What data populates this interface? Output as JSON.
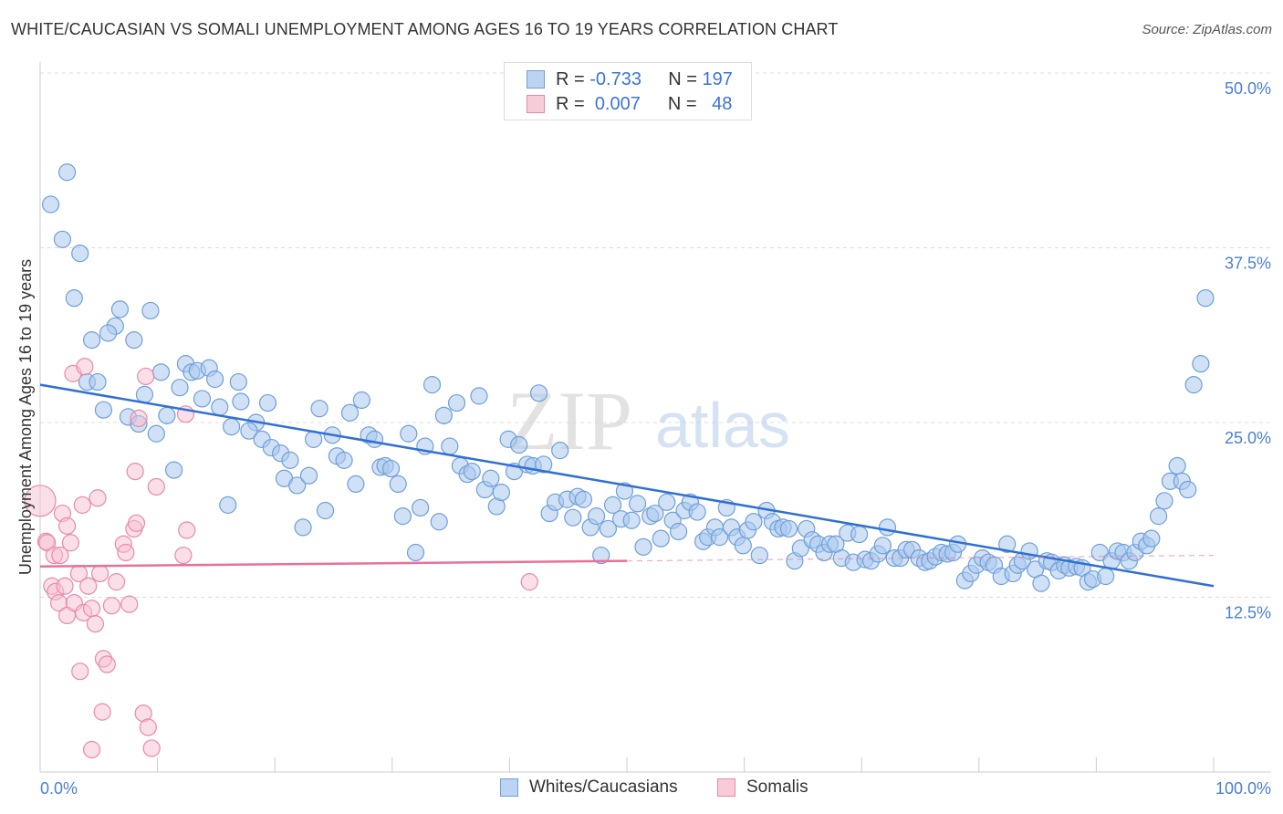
{
  "title": "WHITE/CAUCASIAN VS SOMALI UNEMPLOYMENT AMONG AGES 16 TO 19 YEARS CORRELATION CHART",
  "source": "Source: ZipAtlas.com",
  "legend": {
    "rows": [
      {
        "r_label": "R =",
        "r": "-0.733",
        "n_label": "N =",
        "n": "197"
      },
      {
        "r_label": "R =",
        "r": "0.007",
        "n_label": "N =",
        "n": "48"
      }
    ]
  },
  "watermark": {
    "zip": "ZIP",
    "atlas": "atlas"
  },
  "chart_data": {
    "type": "scatter",
    "title": "WHITE/CAUCASIAN VS SOMALI UNEMPLOYMENT AMONG AGES 16 TO 19 YEARS CORRELATION CHART",
    "xlabel": "",
    "ylabel": "Unemployment Among Ages 16 to 19 years",
    "xlim": [
      0,
      100
    ],
    "ylim": [
      0,
      50
    ],
    "x_tick_labels": [
      "0.0%",
      "100.0%"
    ],
    "y_ticks": [
      12.5,
      25.0,
      37.5,
      50.0
    ],
    "y_tick_labels": [
      "12.5%",
      "25.0%",
      "37.5%",
      "50.0%"
    ],
    "grid": true,
    "legend_position": "top-center",
    "colors": {
      "blue_fill": "#a9c8ee",
      "blue_stroke": "#6f9fd8",
      "blue_line": "#2f6fd6",
      "pink_fill": "#f6c0d2",
      "pink_stroke": "#e88aa8",
      "pink_line": "#e8719a"
    },
    "series": [
      {
        "name": "Whites/Caucasians",
        "trend": [
          [
            0,
            27.7
          ],
          [
            100,
            13.3
          ]
        ],
        "points": [
          [
            2.3,
            42.9
          ],
          [
            0.9,
            40.6
          ],
          [
            1.9,
            38.1
          ],
          [
            3.4,
            37.1
          ],
          [
            2.9,
            33.9
          ],
          [
            6.8,
            33.1
          ],
          [
            9.4,
            33.0
          ],
          [
            6.4,
            31.9
          ],
          [
            5.8,
            31.4
          ],
          [
            4.4,
            30.9
          ],
          [
            8.0,
            30.9
          ],
          [
            4.0,
            27.9
          ],
          [
            4.9,
            27.9
          ],
          [
            5.4,
            25.9
          ],
          [
            7.5,
            25.4
          ],
          [
            8.4,
            24.9
          ],
          [
            8.9,
            27.0
          ],
          [
            10.3,
            28.6
          ],
          [
            9.9,
            24.2
          ],
          [
            10.8,
            25.5
          ],
          [
            11.4,
            21.6
          ],
          [
            12.4,
            29.2
          ],
          [
            12.9,
            28.6
          ],
          [
            13.4,
            28.7
          ],
          [
            14.4,
            28.9
          ],
          [
            14.9,
            28.1
          ],
          [
            11.9,
            27.5
          ],
          [
            13.8,
            26.7
          ],
          [
            15.3,
            26.1
          ],
          [
            16.9,
            27.9
          ],
          [
            17.1,
            26.5
          ],
          [
            19.4,
            26.4
          ],
          [
            16.3,
            24.7
          ],
          [
            18.4,
            25.0
          ],
          [
            17.8,
            24.4
          ],
          [
            18.9,
            23.8
          ],
          [
            19.7,
            23.2
          ],
          [
            20.5,
            22.8
          ],
          [
            21.3,
            22.3
          ],
          [
            20.8,
            21.0
          ],
          [
            21.9,
            20.5
          ],
          [
            22.9,
            21.2
          ],
          [
            16.0,
            19.1
          ],
          [
            22.4,
            17.5
          ],
          [
            23.8,
            26.0
          ],
          [
            23.3,
            23.8
          ],
          [
            24.9,
            24.1
          ],
          [
            25.3,
            22.6
          ],
          [
            25.9,
            22.3
          ],
          [
            24.3,
            18.7
          ],
          [
            26.4,
            25.7
          ],
          [
            27.4,
            26.6
          ],
          [
            26.9,
            20.6
          ],
          [
            28.0,
            24.1
          ],
          [
            28.5,
            23.8
          ],
          [
            29.0,
            21.8
          ],
          [
            29.4,
            21.9
          ],
          [
            29.9,
            21.7
          ],
          [
            30.5,
            20.6
          ],
          [
            30.9,
            18.3
          ],
          [
            31.4,
            24.2
          ],
          [
            32.0,
            15.7
          ],
          [
            32.4,
            18.9
          ],
          [
            32.8,
            23.3
          ],
          [
            33.4,
            27.7
          ],
          [
            34.0,
            17.9
          ],
          [
            34.9,
            23.3
          ],
          [
            34.4,
            25.5
          ],
          [
            35.5,
            26.4
          ],
          [
            35.8,
            21.9
          ],
          [
            36.4,
            21.3
          ],
          [
            36.8,
            21.5
          ],
          [
            37.4,
            26.9
          ],
          [
            37.9,
            20.2
          ],
          [
            38.4,
            21.0
          ],
          [
            38.9,
            19.0
          ],
          [
            39.3,
            20.0
          ],
          [
            39.9,
            23.8
          ],
          [
            40.4,
            21.5
          ],
          [
            40.8,
            23.4
          ],
          [
            41.5,
            22.0
          ],
          [
            42.0,
            21.9
          ],
          [
            42.5,
            27.1
          ],
          [
            42.9,
            22.0
          ],
          [
            43.4,
            18.5
          ],
          [
            43.9,
            19.3
          ],
          [
            44.3,
            23.0
          ],
          [
            44.9,
            19.5
          ],
          [
            45.4,
            18.2
          ],
          [
            45.8,
            19.7
          ],
          [
            46.3,
            19.5
          ],
          [
            46.9,
            17.5
          ],
          [
            47.4,
            18.3
          ],
          [
            47.8,
            15.5
          ],
          [
            48.4,
            17.4
          ],
          [
            48.8,
            19.1
          ],
          [
            49.5,
            18.1
          ],
          [
            49.8,
            20.1
          ],
          [
            50.4,
            18.0
          ],
          [
            50.9,
            19.2
          ],
          [
            51.4,
            16.1
          ],
          [
            52.0,
            18.3
          ],
          [
            52.4,
            18.5
          ],
          [
            52.9,
            16.7
          ],
          [
            53.4,
            19.3
          ],
          [
            53.9,
            18.0
          ],
          [
            54.4,
            17.2
          ],
          [
            54.9,
            18.7
          ],
          [
            55.4,
            19.3
          ],
          [
            56.0,
            18.6
          ],
          [
            56.5,
            16.5
          ],
          [
            56.9,
            16.8
          ],
          [
            57.5,
            17.5
          ],
          [
            57.9,
            16.8
          ],
          [
            58.5,
            18.9
          ],
          [
            58.9,
            17.5
          ],
          [
            59.4,
            16.8
          ],
          [
            59.9,
            16.2
          ],
          [
            60.3,
            17.3
          ],
          [
            60.8,
            17.9
          ],
          [
            61.3,
            15.5
          ],
          [
            61.9,
            18.7
          ],
          [
            62.4,
            17.9
          ],
          [
            62.9,
            17.4
          ],
          [
            63.3,
            17.5
          ],
          [
            63.8,
            17.4
          ],
          [
            64.3,
            15.1
          ],
          [
            64.8,
            16.0
          ],
          [
            65.3,
            17.4
          ],
          [
            65.8,
            16.6
          ],
          [
            66.3,
            16.3
          ],
          [
            66.8,
            15.7
          ],
          [
            67.3,
            16.3
          ],
          [
            67.8,
            16.3
          ],
          [
            68.3,
            15.3
          ],
          [
            68.8,
            17.1
          ],
          [
            69.3,
            15.0
          ],
          [
            69.8,
            17.0
          ],
          [
            70.3,
            15.2
          ],
          [
            70.8,
            15.1
          ],
          [
            71.4,
            15.6
          ],
          [
            71.8,
            16.2
          ],
          [
            72.2,
            17.5
          ],
          [
            72.8,
            15.3
          ],
          [
            73.3,
            15.3
          ],
          [
            73.8,
            15.9
          ],
          [
            74.3,
            15.9
          ],
          [
            74.9,
            15.3
          ],
          [
            75.4,
            15.0
          ],
          [
            75.8,
            15.1
          ],
          [
            76.3,
            15.4
          ],
          [
            76.8,
            15.7
          ],
          [
            77.3,
            15.6
          ],
          [
            77.8,
            15.7
          ],
          [
            78.2,
            16.3
          ],
          [
            78.8,
            13.7
          ],
          [
            79.3,
            14.2
          ],
          [
            79.8,
            14.8
          ],
          [
            80.3,
            15.3
          ],
          [
            80.8,
            15.0
          ],
          [
            81.3,
            14.8
          ],
          [
            81.9,
            14.0
          ],
          [
            82.4,
            16.3
          ],
          [
            82.9,
            14.2
          ],
          [
            83.3,
            14.8
          ],
          [
            83.7,
            15.1
          ],
          [
            84.3,
            15.8
          ],
          [
            84.8,
            14.5
          ],
          [
            85.3,
            13.5
          ],
          [
            85.8,
            15.1
          ],
          [
            86.2,
            15.0
          ],
          [
            86.8,
            14.4
          ],
          [
            87.3,
            14.8
          ],
          [
            87.7,
            14.6
          ],
          [
            88.3,
            14.7
          ],
          [
            88.8,
            14.6
          ],
          [
            89.3,
            13.6
          ],
          [
            89.7,
            13.8
          ],
          [
            90.3,
            15.7
          ],
          [
            90.8,
            14.0
          ],
          [
            91.3,
            15.1
          ],
          [
            91.8,
            15.8
          ],
          [
            92.3,
            15.7
          ],
          [
            92.8,
            15.1
          ],
          [
            93.3,
            15.7
          ],
          [
            93.8,
            16.5
          ],
          [
            94.3,
            16.2
          ],
          [
            94.7,
            16.7
          ],
          [
            95.3,
            18.3
          ],
          [
            95.8,
            19.4
          ],
          [
            96.3,
            20.8
          ],
          [
            96.9,
            21.9
          ],
          [
            97.3,
            20.8
          ],
          [
            97.8,
            20.2
          ],
          [
            98.3,
            27.7
          ],
          [
            98.9,
            29.2
          ],
          [
            99.3,
            33.9
          ]
        ]
      },
      {
        "name": "Somalis",
        "trend": [
          [
            0,
            14.7
          ],
          [
            50,
            15.1
          ]
        ],
        "trend_extension": [
          [
            50,
            15.1
          ],
          [
            100,
            15.5
          ]
        ],
        "points": [
          [
            0.0,
            19.4
          ],
          [
            0.5,
            16.5
          ],
          [
            0.6,
            16.4
          ],
          [
            1.2,
            15.5
          ],
          [
            1.7,
            15.5
          ],
          [
            1.0,
            13.3
          ],
          [
            1.3,
            12.9
          ],
          [
            1.6,
            12.1
          ],
          [
            2.1,
            13.3
          ],
          [
            1.9,
            18.5
          ],
          [
            2.3,
            17.6
          ],
          [
            2.6,
            16.4
          ],
          [
            2.8,
            28.5
          ],
          [
            3.8,
            29.0
          ],
          [
            3.6,
            19.1
          ],
          [
            4.9,
            19.6
          ],
          [
            2.3,
            11.2
          ],
          [
            2.9,
            12.1
          ],
          [
            3.3,
            14.2
          ],
          [
            3.7,
            11.4
          ],
          [
            4.1,
            13.3
          ],
          [
            4.4,
            11.7
          ],
          [
            4.7,
            10.6
          ],
          [
            5.1,
            14.2
          ],
          [
            6.1,
            11.9
          ],
          [
            6.5,
            13.6
          ],
          [
            7.6,
            12.0
          ],
          [
            3.4,
            7.2
          ],
          [
            5.4,
            8.1
          ],
          [
            5.7,
            7.7
          ],
          [
            5.3,
            4.3
          ],
          [
            4.4,
            1.6
          ],
          [
            8.8,
            4.2
          ],
          [
            9.2,
            3.2
          ],
          [
            9.5,
            1.7
          ],
          [
            7.1,
            16.3
          ],
          [
            7.3,
            15.7
          ],
          [
            8.0,
            17.4
          ],
          [
            8.2,
            17.8
          ],
          [
            8.1,
            21.5
          ],
          [
            8.4,
            25.3
          ],
          [
            9.0,
            28.3
          ],
          [
            9.9,
            20.4
          ],
          [
            12.4,
            25.6
          ],
          [
            12.5,
            17.3
          ],
          [
            12.2,
            15.5
          ],
          [
            41.7,
            13.6
          ]
        ]
      }
    ]
  }
}
